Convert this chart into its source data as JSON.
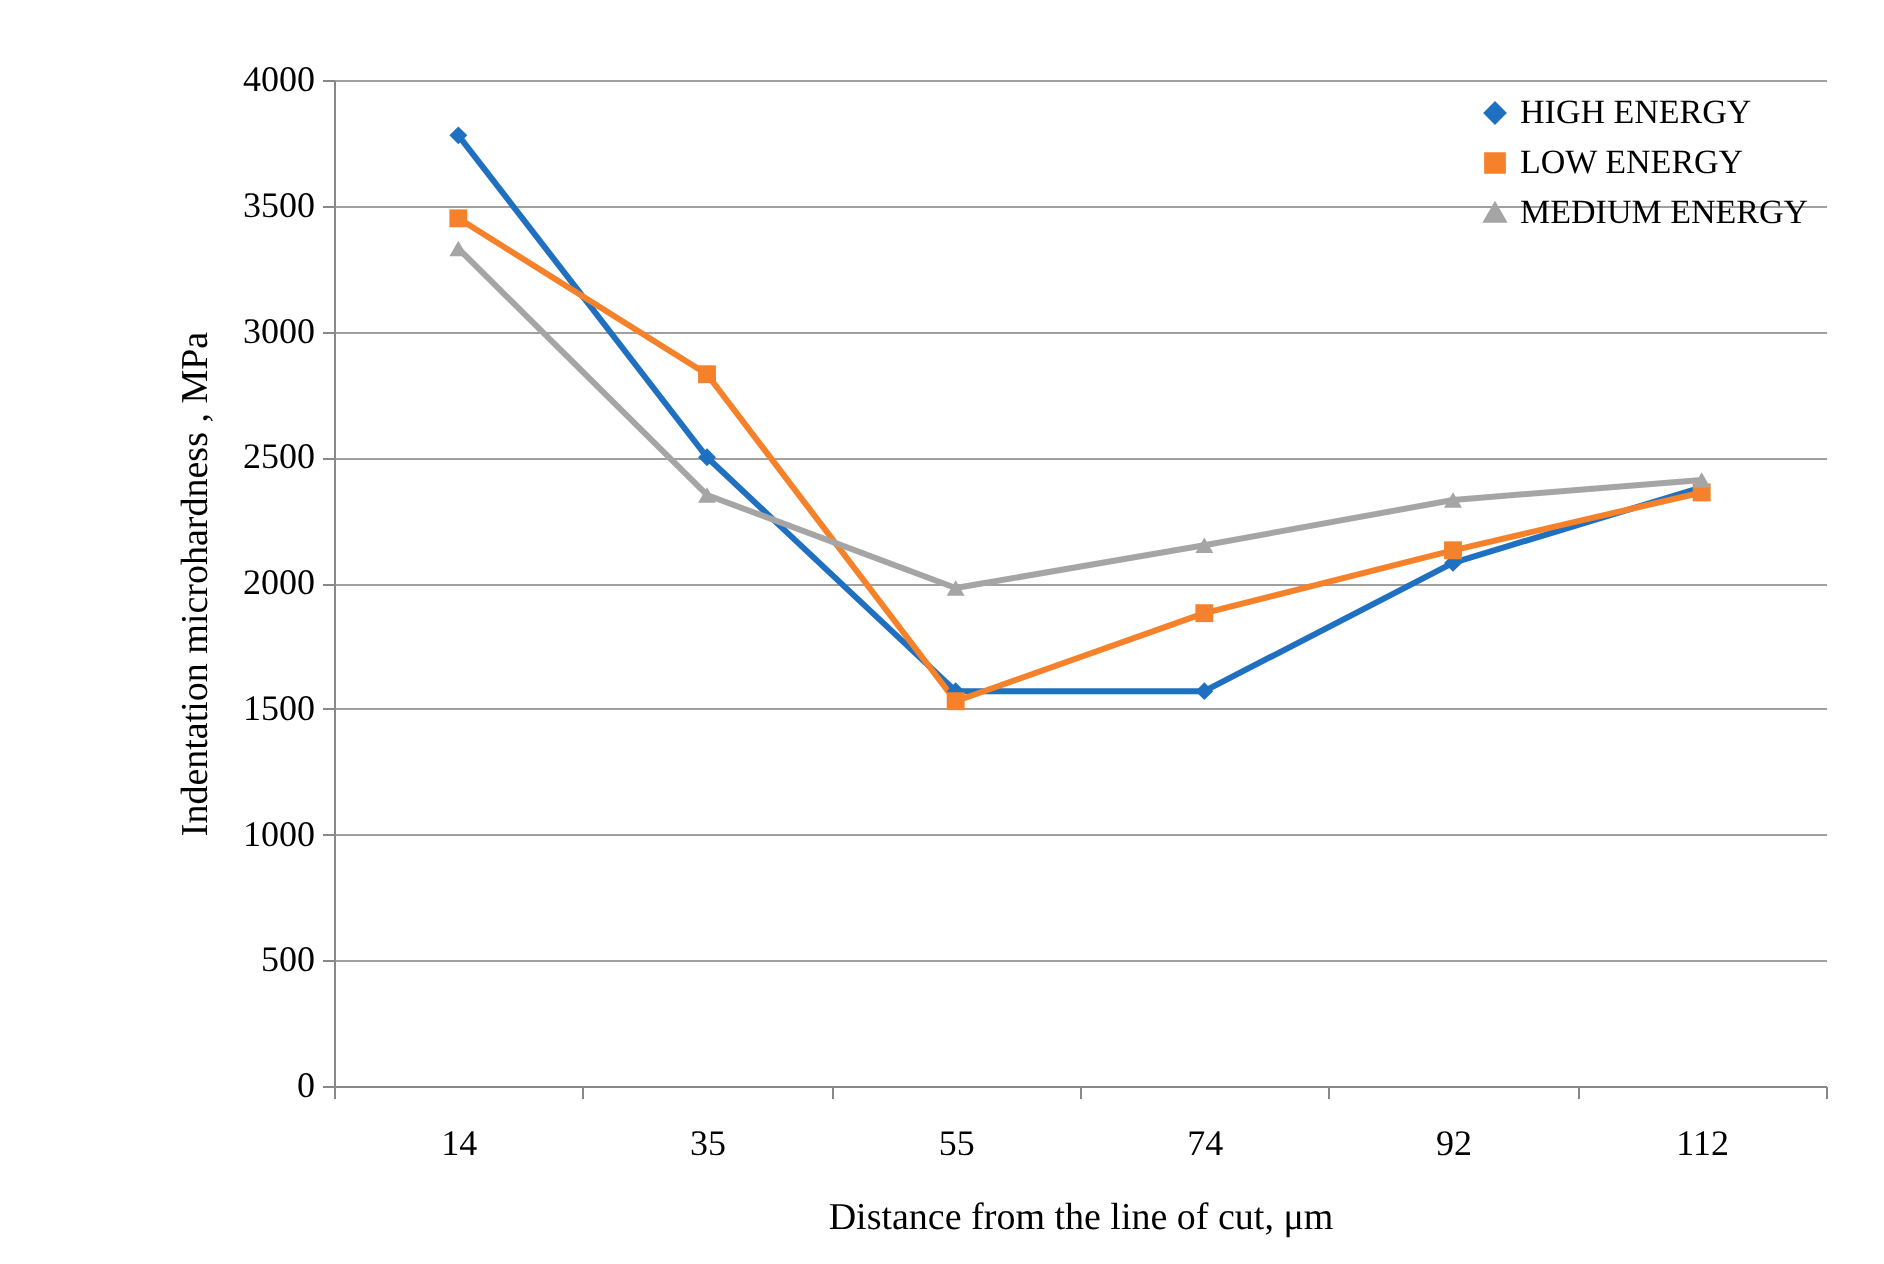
{
  "chart_data": {
    "type": "line",
    "xlabel": "Distance from the line of cut, μm",
    "ylabel": "Indentation microhardness , MPa",
    "categories": [
      "14",
      "35",
      "55",
      "74",
      "92",
      "112"
    ],
    "series": [
      {
        "name": "HIGH ENERGY",
        "color": "#1f70c1",
        "marker": "diamond",
        "values": [
          3780,
          2500,
          1570,
          1570,
          2080,
          2380
        ]
      },
      {
        "name": "LOW ENERGY",
        "color": "#f5822a",
        "marker": "square",
        "values": [
          3450,
          2830,
          1530,
          1880,
          2130,
          2360
        ]
      },
      {
        "name": "MEDIUM ENERGY",
        "color": "#a5a5a5",
        "marker": "triangle",
        "values": [
          3330,
          2350,
          1980,
          2150,
          2330,
          2410
        ]
      }
    ],
    "ylim": [
      0,
      4000
    ],
    "yticks": [
      0,
      500,
      1000,
      1500,
      2000,
      2500,
      3000,
      3500,
      4000
    ],
    "grid": "y",
    "legend": "top right",
    "line_style": "solid"
  }
}
